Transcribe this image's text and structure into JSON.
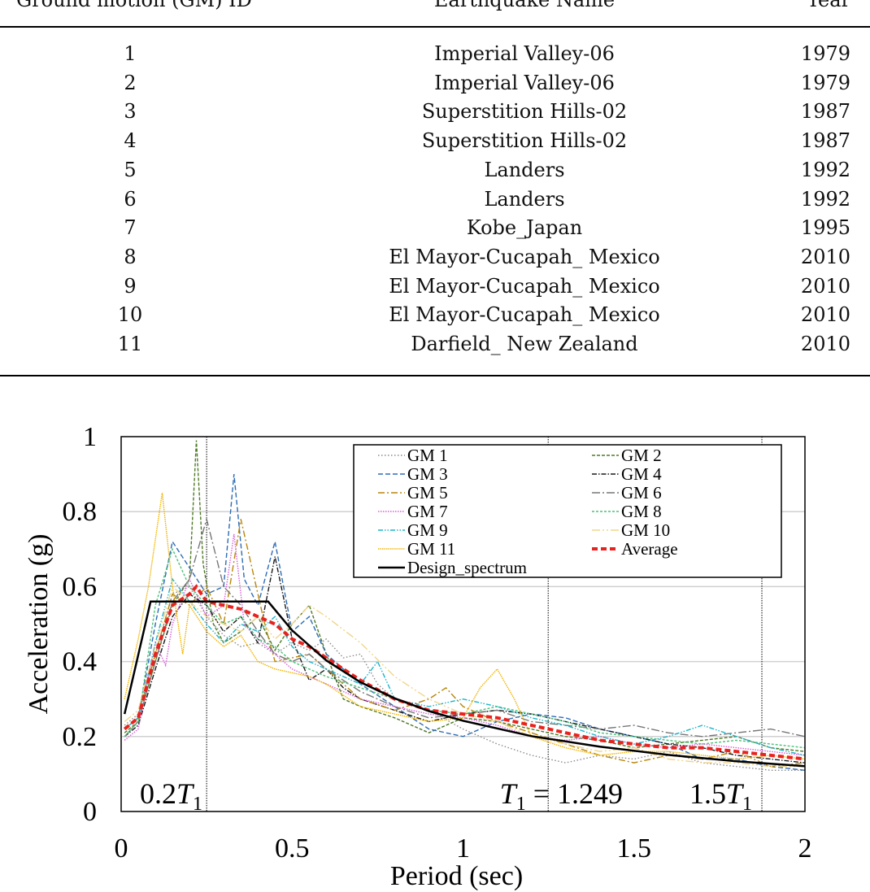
{
  "table": {
    "headers": [
      "Ground motion (GM) ID",
      "Earthquake Name",
      "Year"
    ],
    "rows": [
      {
        "id": "1",
        "name": "Imperial Valley-06",
        "year": "1979"
      },
      {
        "id": "2",
        "name": "Imperial Valley-06",
        "year": "1979"
      },
      {
        "id": "3",
        "name": "Superstition Hills-02",
        "year": "1987"
      },
      {
        "id": "4",
        "name": "Superstition Hills-02",
        "year": "1987"
      },
      {
        "id": "5",
        "name": "Landers",
        "year": "1992"
      },
      {
        "id": "6",
        "name": "Landers",
        "year": "1992"
      },
      {
        "id": "7",
        "name": "Kobe_Japan",
        "year": "1995"
      },
      {
        "id": "8",
        "name": "El Mayor-Cucapah_ Mexico",
        "year": "2010"
      },
      {
        "id": "9",
        "name": "El Mayor-Cucapah_ Mexico",
        "year": "2010"
      },
      {
        "id": "10",
        "name": "El Mayor-Cucapah_ Mexico",
        "year": "2010"
      },
      {
        "id": "11",
        "name": "Darfield_ New Zealand",
        "year": "2010"
      }
    ]
  },
  "chart_data": {
    "type": "line",
    "xlabel": "Period (sec)",
    "ylabel": "Acceleration (g)",
    "xlim": [
      0,
      2
    ],
    "ylim": [
      0,
      1
    ],
    "xticks": [
      "0",
      "0.5",
      "1",
      "1.5",
      "2"
    ],
    "yticks": [
      "0",
      "0.2",
      "0.4",
      "0.6",
      "0.8",
      "1"
    ],
    "grid": "horizontal",
    "legend_position": "top-right",
    "annotations": [
      {
        "label": "0.2T1",
        "x": 0.25
      },
      {
        "label": "T1 = 1.249",
        "x": 1.249
      },
      {
        "label": "1.5T1",
        "x": 1.874
      }
    ],
    "series": [
      {
        "name": "GM 1",
        "color": "#8a8a8a",
        "dash": "1.5,2.5",
        "x": [
          0.01,
          0.05,
          0.1,
          0.15,
          0.2,
          0.25,
          0.3,
          0.35,
          0.4,
          0.45,
          0.5,
          0.55,
          0.6,
          0.65,
          0.7,
          0.75,
          0.8,
          0.9,
          1.0,
          1.1,
          1.2,
          1.3,
          1.4,
          1.5,
          1.6,
          1.7,
          1.8,
          1.9,
          2.0
        ],
        "y": [
          0.23,
          0.26,
          0.42,
          0.58,
          0.6,
          0.52,
          0.47,
          0.44,
          0.45,
          0.42,
          0.45,
          0.43,
          0.46,
          0.41,
          0.42,
          0.34,
          0.3,
          0.27,
          0.22,
          0.18,
          0.15,
          0.13,
          0.15,
          0.14,
          0.16,
          0.13,
          0.12,
          0.11,
          0.11
        ]
      },
      {
        "name": "GM 2",
        "color": "#4e7a23",
        "dash": "4,2",
        "x": [
          0.01,
          0.05,
          0.1,
          0.15,
          0.2,
          0.22,
          0.24,
          0.27,
          0.3,
          0.35,
          0.4,
          0.45,
          0.5,
          0.55,
          0.6,
          0.65,
          0.7,
          0.8,
          0.9,
          1.0,
          1.1,
          1.2,
          1.3,
          1.4,
          1.5,
          1.6,
          1.7,
          1.8,
          1.9,
          2.0
        ],
        "y": [
          0.21,
          0.24,
          0.4,
          0.55,
          0.62,
          0.99,
          0.66,
          0.5,
          0.45,
          0.48,
          0.52,
          0.43,
          0.5,
          0.55,
          0.42,
          0.3,
          0.28,
          0.25,
          0.21,
          0.25,
          0.24,
          0.22,
          0.2,
          0.19,
          0.17,
          0.18,
          0.19,
          0.2,
          0.17,
          0.16
        ]
      },
      {
        "name": "GM 3",
        "color": "#2e6cb5",
        "dash": "6,3",
        "x": [
          0.01,
          0.05,
          0.1,
          0.15,
          0.2,
          0.25,
          0.3,
          0.33,
          0.36,
          0.4,
          0.45,
          0.5,
          0.55,
          0.6,
          0.7,
          0.8,
          0.9,
          1.0,
          1.1,
          1.2,
          1.3,
          1.4,
          1.5,
          1.6,
          1.7,
          1.8,
          1.9,
          2.0
        ],
        "y": [
          0.22,
          0.25,
          0.5,
          0.72,
          0.65,
          0.58,
          0.6,
          0.9,
          0.62,
          0.55,
          0.72,
          0.48,
          0.52,
          0.42,
          0.34,
          0.28,
          0.22,
          0.2,
          0.24,
          0.26,
          0.25,
          0.22,
          0.2,
          0.18,
          0.14,
          0.14,
          0.12,
          0.11
        ]
      },
      {
        "name": "GM 4",
        "color": "#1a1a1a",
        "dash": "6,2,1.5,2",
        "x": [
          0.01,
          0.05,
          0.1,
          0.15,
          0.2,
          0.25,
          0.3,
          0.35,
          0.4,
          0.45,
          0.5,
          0.55,
          0.6,
          0.65,
          0.7,
          0.8,
          0.9,
          1.0,
          1.1,
          1.2,
          1.3,
          1.4,
          1.5,
          1.6,
          1.7,
          1.8,
          1.9,
          2.0
        ],
        "y": [
          0.2,
          0.23,
          0.38,
          0.52,
          0.58,
          0.55,
          0.48,
          0.52,
          0.45,
          0.68,
          0.46,
          0.35,
          0.38,
          0.33,
          0.3,
          0.27,
          0.24,
          0.26,
          0.27,
          0.26,
          0.24,
          0.22,
          0.2,
          0.18,
          0.17,
          0.15,
          0.14,
          0.13
        ]
      },
      {
        "name": "GM 5",
        "color": "#b8860b",
        "dash": "8,3,2,3",
        "x": [
          0.01,
          0.05,
          0.1,
          0.15,
          0.2,
          0.25,
          0.3,
          0.35,
          0.38,
          0.42,
          0.45,
          0.5,
          0.55,
          0.6,
          0.7,
          0.8,
          0.9,
          0.95,
          1.0,
          1.1,
          1.2,
          1.3,
          1.4,
          1.5,
          1.6,
          1.7,
          1.8,
          1.9,
          2.0
        ],
        "y": [
          0.22,
          0.25,
          0.42,
          0.58,
          0.55,
          0.6,
          0.5,
          0.78,
          0.66,
          0.5,
          0.4,
          0.41,
          0.42,
          0.38,
          0.3,
          0.27,
          0.3,
          0.33,
          0.28,
          0.24,
          0.21,
          0.18,
          0.15,
          0.13,
          0.15,
          0.14,
          0.16,
          0.12,
          0.13
        ]
      },
      {
        "name": "GM 6",
        "color": "#777777",
        "dash": "10,3,2,3",
        "x": [
          0.01,
          0.05,
          0.1,
          0.15,
          0.2,
          0.25,
          0.3,
          0.35,
          0.4,
          0.45,
          0.5,
          0.55,
          0.6,
          0.7,
          0.8,
          0.9,
          1.0,
          1.1,
          1.2,
          1.3,
          1.4,
          1.5,
          1.6,
          1.7,
          1.8,
          1.9,
          2.0
        ],
        "y": [
          0.2,
          0.24,
          0.4,
          0.56,
          0.62,
          0.78,
          0.6,
          0.55,
          0.48,
          0.42,
          0.4,
          0.42,
          0.38,
          0.32,
          0.28,
          0.25,
          0.26,
          0.27,
          0.24,
          0.23,
          0.22,
          0.23,
          0.21,
          0.2,
          0.21,
          0.22,
          0.2
        ]
      },
      {
        "name": "GM 7",
        "color": "#d85ed8",
        "dash": "1.5,1.5",
        "x": [
          0.01,
          0.05,
          0.1,
          0.13,
          0.15,
          0.2,
          0.25,
          0.3,
          0.33,
          0.36,
          0.4,
          0.45,
          0.5,
          0.55,
          0.6,
          0.7,
          0.8,
          0.9,
          1.0,
          1.1,
          1.2,
          1.3,
          1.4,
          1.5,
          1.6,
          1.7,
          1.8,
          1.9,
          2.0
        ],
        "y": [
          0.19,
          0.22,
          0.45,
          0.39,
          0.5,
          0.62,
          0.52,
          0.55,
          0.74,
          0.5,
          0.46,
          0.42,
          0.38,
          0.36,
          0.34,
          0.3,
          0.28,
          0.26,
          0.25,
          0.23,
          0.2,
          0.19,
          0.2,
          0.18,
          0.17,
          0.18,
          0.17,
          0.16,
          0.15
        ]
      },
      {
        "name": "GM 8",
        "color": "#4cc07a",
        "dash": "3,2",
        "x": [
          0.01,
          0.05,
          0.1,
          0.15,
          0.2,
          0.25,
          0.3,
          0.35,
          0.4,
          0.45,
          0.5,
          0.55,
          0.6,
          0.7,
          0.8,
          0.9,
          1.0,
          1.1,
          1.2,
          1.3,
          1.4,
          1.5,
          1.6,
          1.7,
          1.8,
          1.9,
          2.0
        ],
        "y": [
          0.2,
          0.24,
          0.55,
          0.7,
          0.6,
          0.55,
          0.5,
          0.52,
          0.46,
          0.44,
          0.4,
          0.38,
          0.36,
          0.33,
          0.3,
          0.27,
          0.26,
          0.28,
          0.26,
          0.24,
          0.21,
          0.2,
          0.19,
          0.18,
          0.19,
          0.18,
          0.17
        ]
      },
      {
        "name": "GM 9",
        "color": "#1fb3c9",
        "dash": "6,2,1.5,2,1.5,2",
        "x": [
          0.01,
          0.05,
          0.1,
          0.15,
          0.2,
          0.25,
          0.3,
          0.35,
          0.4,
          0.45,
          0.5,
          0.55,
          0.6,
          0.7,
          0.75,
          0.8,
          0.9,
          1.0,
          1.1,
          1.2,
          1.3,
          1.4,
          1.5,
          1.6,
          1.7,
          1.8,
          1.9,
          2.0
        ],
        "y": [
          0.22,
          0.25,
          0.45,
          0.62,
          0.56,
          0.5,
          0.45,
          0.5,
          0.48,
          0.52,
          0.44,
          0.4,
          0.38,
          0.34,
          0.4,
          0.3,
          0.28,
          0.3,
          0.28,
          0.25,
          0.23,
          0.2,
          0.18,
          0.2,
          0.23,
          0.2,
          0.17,
          0.15
        ]
      },
      {
        "name": "GM 10",
        "color": "#f0d58c",
        "dash": "10,3,2,3,2,3",
        "x": [
          0.01,
          0.05,
          0.1,
          0.15,
          0.2,
          0.25,
          0.3,
          0.35,
          0.4,
          0.45,
          0.5,
          0.55,
          0.6,
          0.7,
          0.8,
          0.9,
          1.0,
          1.1,
          1.2,
          1.3,
          1.4,
          1.5,
          1.6,
          1.7,
          1.8,
          1.9,
          2.0
        ],
        "y": [
          0.24,
          0.27,
          0.44,
          0.6,
          0.56,
          0.52,
          0.5,
          0.48,
          0.52,
          0.46,
          0.5,
          0.55,
          0.52,
          0.45,
          0.36,
          0.3,
          0.26,
          0.24,
          0.2,
          0.18,
          0.16,
          0.17,
          0.14,
          0.13,
          0.13,
          0.12,
          0.12
        ]
      },
      {
        "name": "GM 11",
        "color": "#f2b400",
        "dash": "1.5,1",
        "x": [
          0.01,
          0.05,
          0.08,
          0.12,
          0.15,
          0.18,
          0.2,
          0.25,
          0.3,
          0.35,
          0.4,
          0.45,
          0.5,
          0.55,
          0.6,
          0.7,
          0.8,
          0.9,
          1.0,
          1.05,
          1.1,
          1.15,
          1.2,
          1.3,
          1.4,
          1.5,
          1.6,
          1.7,
          1.8,
          1.9,
          2.0
        ],
        "y": [
          0.3,
          0.46,
          0.6,
          0.85,
          0.6,
          0.42,
          0.55,
          0.48,
          0.44,
          0.47,
          0.4,
          0.38,
          0.37,
          0.36,
          0.34,
          0.28,
          0.26,
          0.24,
          0.25,
          0.33,
          0.38,
          0.3,
          0.2,
          0.17,
          0.15,
          0.16,
          0.16,
          0.15,
          0.14,
          0.15,
          0.14
        ]
      },
      {
        "name": "Average",
        "color": "#e8231f",
        "dash": "7,4",
        "width": 4,
        "x": [
          0.01,
          0.05,
          0.1,
          0.15,
          0.2,
          0.22,
          0.25,
          0.3,
          0.35,
          0.4,
          0.45,
          0.5,
          0.55,
          0.6,
          0.7,
          0.8,
          0.9,
          1.0,
          1.1,
          1.2,
          1.3,
          1.4,
          1.5,
          1.6,
          1.7,
          1.8,
          1.9,
          2.0
        ],
        "y": [
          0.22,
          0.25,
          0.42,
          0.55,
          0.58,
          0.6,
          0.56,
          0.55,
          0.54,
          0.52,
          0.5,
          0.46,
          0.44,
          0.41,
          0.35,
          0.3,
          0.27,
          0.26,
          0.25,
          0.23,
          0.21,
          0.19,
          0.18,
          0.17,
          0.17,
          0.16,
          0.15,
          0.14
        ]
      },
      {
        "name": "Design_spectrum",
        "color": "#000000",
        "dash": "",
        "width": 2.5,
        "x": [
          0.01,
          0.086,
          0.1,
          0.2,
          0.3,
          0.4,
          0.43,
          0.5,
          0.6,
          0.7,
          0.8,
          0.9,
          1.0,
          1.2,
          1.4,
          1.6,
          1.8,
          2.0
        ],
        "y": [
          0.26,
          0.56,
          0.56,
          0.56,
          0.56,
          0.56,
          0.56,
          0.483,
          0.403,
          0.345,
          0.302,
          0.268,
          0.242,
          0.201,
          0.173,
          0.151,
          0.134,
          0.121
        ]
      }
    ]
  }
}
